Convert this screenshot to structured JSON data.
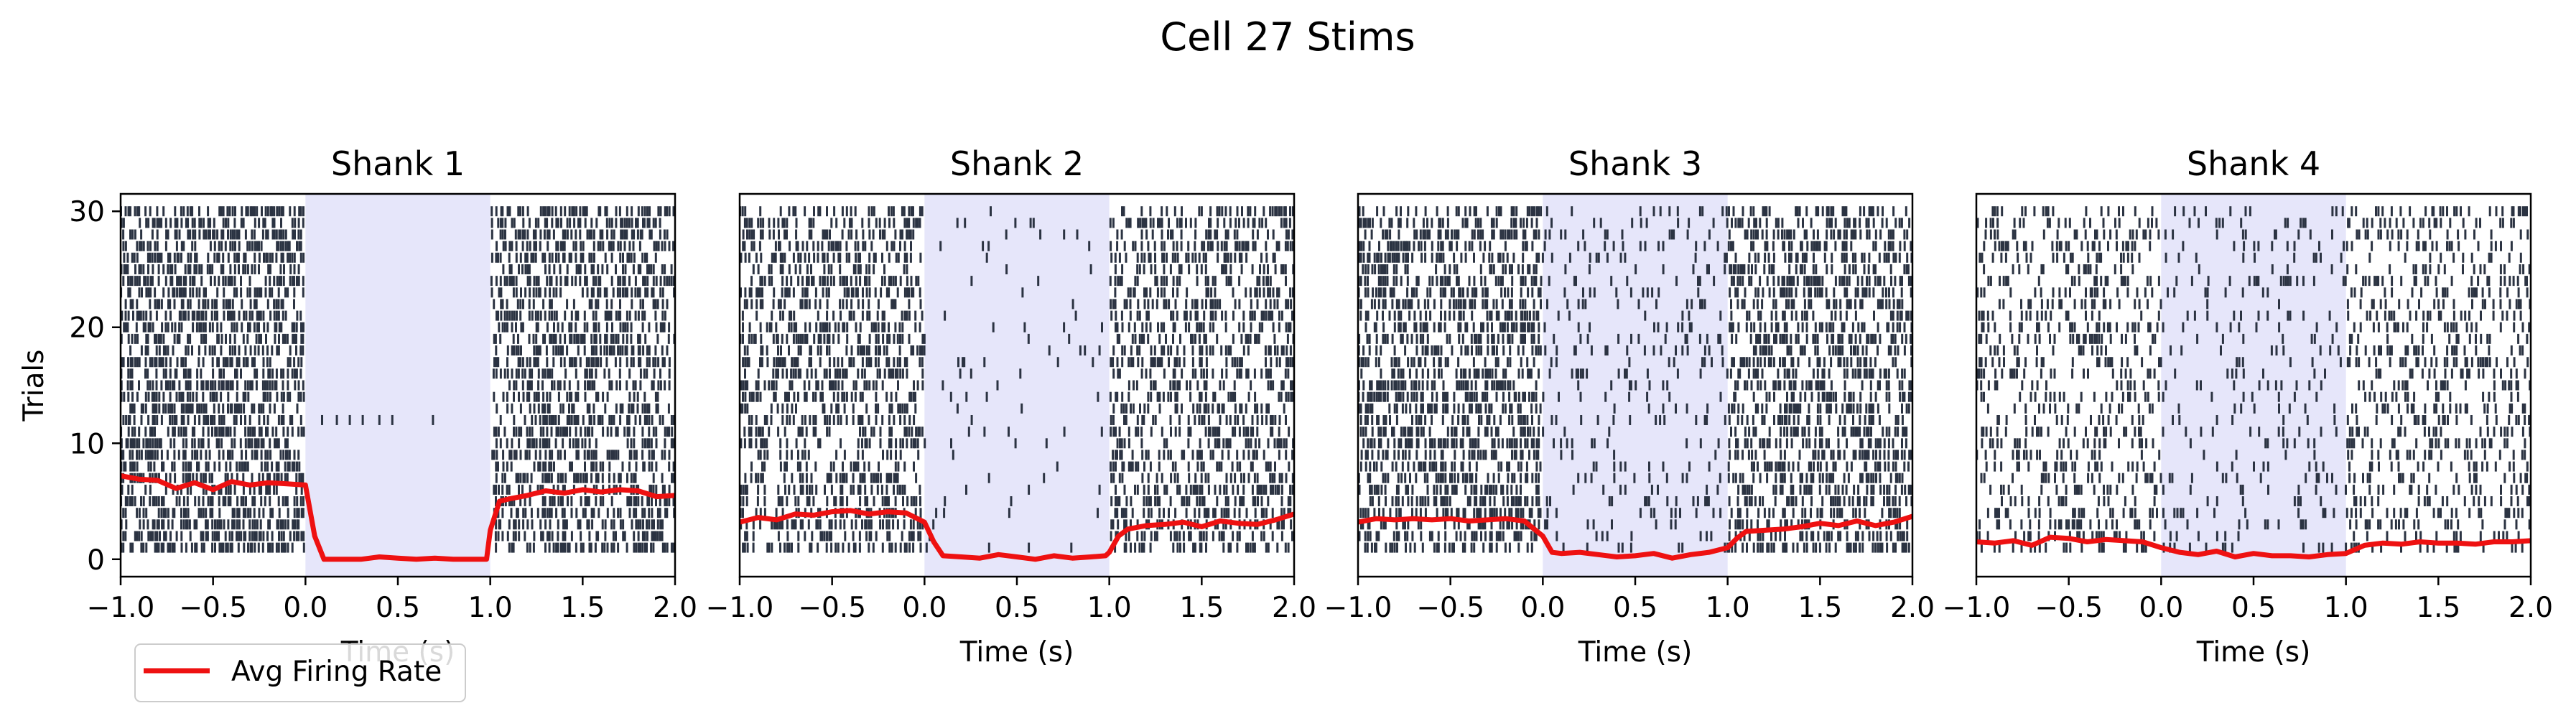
{
  "figure": {
    "title": "Cell 27 Stims",
    "legend_label": "Avg Firing Rate"
  },
  "colors": {
    "stim_window": "#e6e6fa",
    "spikes": "#2b3342",
    "avg_rate": "#ee1111",
    "axes": "#000000"
  },
  "chart_data": [
    {
      "type": "raster",
      "title": "Shank 1",
      "xlabel": "Time (s)",
      "ylabel": "Trials",
      "xlim": [
        -1.0,
        2.0
      ],
      "ylim": [
        -1.5,
        31.5
      ],
      "xticks": [
        "−1.0",
        "−0.5",
        "0.0",
        "0.5",
        "1.0",
        "1.5",
        "2.0"
      ],
      "yticks": [
        "0",
        "10",
        "20",
        "30"
      ],
      "trials": 30,
      "stim_window": [
        0.0,
        1.0
      ],
      "spike_density": {
        "pre": 0.55,
        "stim": 0.0,
        "post": 0.5
      },
      "stim_trial_spikes": {
        "trial": 12,
        "times": [
          0.09,
          0.17,
          0.24,
          0.31,
          0.4,
          0.47,
          0.69
        ]
      },
      "series": [
        {
          "name": "Avg Firing Rate",
          "x": [
            -1.0,
            -0.9,
            -0.8,
            -0.7,
            -0.6,
            -0.5,
            -0.4,
            -0.3,
            -0.2,
            -0.1,
            0.0,
            0.05,
            0.1,
            0.2,
            0.3,
            0.4,
            0.5,
            0.6,
            0.7,
            0.8,
            0.9,
            0.98,
            1.0,
            1.05,
            1.1,
            1.2,
            1.3,
            1.4,
            1.5,
            1.6,
            1.7,
            1.8,
            1.9,
            2.0
          ],
          "y": [
            7.2,
            6.9,
            6.8,
            6.1,
            6.6,
            6.0,
            6.7,
            6.4,
            6.6,
            6.5,
            6.4,
            2.0,
            0.0,
            0.0,
            0.0,
            0.2,
            0.1,
            0.0,
            0.1,
            0.0,
            0.0,
            0.0,
            2.5,
            5.0,
            5.2,
            5.5,
            5.9,
            5.7,
            6.0,
            5.8,
            6.0,
            5.9,
            5.4,
            5.5
          ]
        }
      ]
    },
    {
      "type": "raster",
      "title": "Shank 2",
      "xlabel": "Time (s)",
      "ylabel": "",
      "xlim": [
        -1.0,
        2.0
      ],
      "ylim": [
        -1.5,
        31.5
      ],
      "xticks": [
        "−1.0",
        "−0.5",
        "0.0",
        "0.5",
        "1.0",
        "1.5",
        "2.0"
      ],
      "yticks": [],
      "trials": 30,
      "stim_window": [
        0.0,
        1.0
      ],
      "spike_density": {
        "pre": 0.42,
        "stim": 0.03,
        "post": 0.42
      },
      "series": [
        {
          "name": "Avg Firing Rate",
          "x": [
            -1.0,
            -0.9,
            -0.8,
            -0.7,
            -0.6,
            -0.5,
            -0.4,
            -0.3,
            -0.2,
            -0.1,
            0.0,
            0.05,
            0.1,
            0.2,
            0.3,
            0.4,
            0.5,
            0.6,
            0.7,
            0.8,
            0.9,
            0.98,
            1.0,
            1.05,
            1.1,
            1.2,
            1.3,
            1.4,
            1.5,
            1.6,
            1.7,
            1.8,
            1.9,
            2.0
          ],
          "y": [
            3.2,
            3.6,
            3.4,
            3.9,
            3.8,
            4.1,
            4.2,
            3.9,
            4.1,
            4.0,
            3.2,
            1.5,
            0.3,
            0.2,
            0.1,
            0.4,
            0.2,
            0.0,
            0.3,
            0.1,
            0.2,
            0.3,
            0.6,
            2.0,
            2.6,
            2.9,
            3.0,
            3.2,
            2.8,
            3.3,
            3.1,
            3.0,
            3.4,
            3.9
          ]
        }
      ]
    },
    {
      "type": "raster",
      "title": "Shank 3",
      "xlabel": "Time (s)",
      "ylabel": "",
      "xlim": [
        -1.0,
        2.0
      ],
      "ylim": [
        -1.5,
        31.5
      ],
      "xticks": [
        "−1.0",
        "−0.5",
        "0.0",
        "0.5",
        "1.0",
        "1.5",
        "2.0"
      ],
      "yticks": [],
      "trials": 30,
      "stim_window": [
        0.0,
        1.0
      ],
      "spike_density": {
        "pre": 0.48,
        "stim": 0.12,
        "post": 0.45
      },
      "series": [
        {
          "name": "Avg Firing Rate",
          "x": [
            -1.0,
            -0.9,
            -0.8,
            -0.7,
            -0.6,
            -0.5,
            -0.4,
            -0.3,
            -0.2,
            -0.1,
            0.0,
            0.05,
            0.1,
            0.2,
            0.3,
            0.4,
            0.5,
            0.6,
            0.7,
            0.8,
            0.9,
            1.0,
            1.05,
            1.1,
            1.2,
            1.3,
            1.4,
            1.5,
            1.6,
            1.7,
            1.8,
            1.9,
            2.0
          ],
          "y": [
            3.2,
            3.5,
            3.4,
            3.5,
            3.4,
            3.5,
            3.3,
            3.4,
            3.5,
            3.3,
            2.0,
            0.6,
            0.5,
            0.6,
            0.4,
            0.2,
            0.3,
            0.5,
            0.1,
            0.4,
            0.6,
            1.0,
            1.8,
            2.4,
            2.5,
            2.6,
            2.8,
            3.1,
            2.9,
            3.3,
            2.9,
            3.2,
            3.7
          ]
        }
      ]
    },
    {
      "type": "raster",
      "title": "Shank 4",
      "xlabel": "Time (s)",
      "ylabel": "",
      "xlim": [
        -1.0,
        2.0
      ],
      "ylim": [
        -1.5,
        31.5
      ],
      "xticks": [
        "−1.0",
        "−0.5",
        "0.0",
        "0.5",
        "1.0",
        "1.5",
        "2.0"
      ],
      "yticks": [],
      "trials": 30,
      "stim_window": [
        0.0,
        1.0
      ],
      "spike_density": {
        "pre": 0.28,
        "stim": 0.1,
        "post": 0.25
      },
      "series": [
        {
          "name": "Avg Firing Rate",
          "x": [
            -1.0,
            -0.9,
            -0.8,
            -0.7,
            -0.6,
            -0.5,
            -0.4,
            -0.3,
            -0.2,
            -0.1,
            0.0,
            0.1,
            0.2,
            0.3,
            0.4,
            0.5,
            0.6,
            0.7,
            0.8,
            0.9,
            1.0,
            1.1,
            1.2,
            1.3,
            1.4,
            1.5,
            1.6,
            1.7,
            1.8,
            1.9,
            2.0
          ],
          "y": [
            1.5,
            1.4,
            1.6,
            1.2,
            1.9,
            1.8,
            1.5,
            1.7,
            1.6,
            1.5,
            1.0,
            0.6,
            0.4,
            0.7,
            0.2,
            0.5,
            0.3,
            0.3,
            0.2,
            0.4,
            0.5,
            1.2,
            1.4,
            1.3,
            1.5,
            1.4,
            1.4,
            1.3,
            1.5,
            1.5,
            1.6
          ]
        }
      ]
    }
  ]
}
